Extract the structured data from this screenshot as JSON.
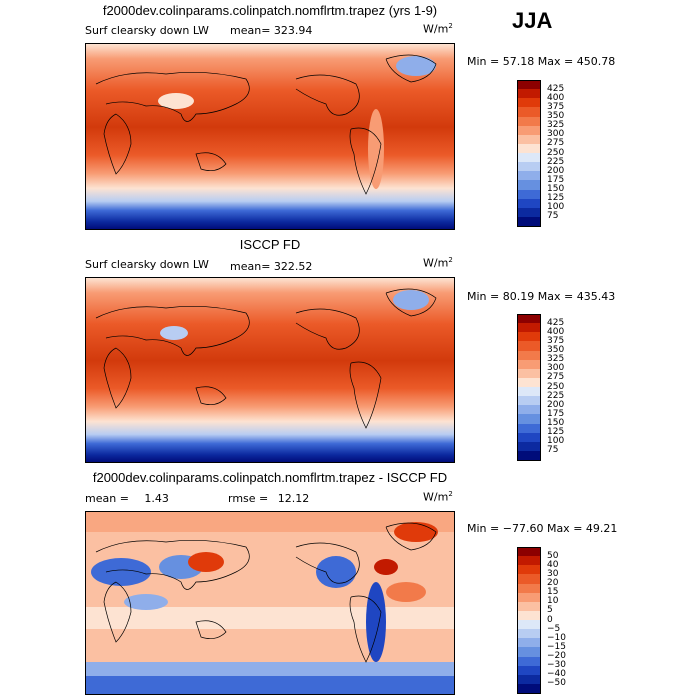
{
  "season": "JJA",
  "panels": [
    {
      "title": "f2000dev.colinparams.colinpatch.nomflrtm.trapez (yrs 1-9)",
      "field_label": "Surf clearsky down LW",
      "mean_label": "mean=",
      "mean_value": "323.94",
      "units_base": "W/m",
      "units_exp": "2",
      "min_label": "Min =",
      "min_value": "57.18",
      "max_label": "Max =",
      "max_value": "450.78"
    },
    {
      "title": "ISCCP FD",
      "field_label": "Surf clearsky down LW",
      "mean_label": "mean=",
      "mean_value": "322.52",
      "units_base": "W/m",
      "units_exp": "2",
      "min_label": "Min =",
      "min_value": "80.19",
      "max_label": "Max =",
      "max_value": "435.43"
    },
    {
      "title": "f2000dev.colinparams.colinpatch.nomflrtm.trapez - ISCCP FD",
      "mean_label": "mean =",
      "mean_value": "1.43",
      "rmse_label": "rmse =",
      "rmse_value": "12.12",
      "units_base": "W/m",
      "units_exp": "2",
      "min_label": "Min =",
      "min_value": "−77.60",
      "max_label": "Max =",
      "max_value": "49.21"
    }
  ],
  "chart_data": [
    {
      "type": "heatmap",
      "title": "f2000dev.colinparams.colinpatch.nomflrtm.trapez (yrs 1-9)",
      "variable": "Surf clearsky down LW",
      "units": "W/m2",
      "mean": 323.94,
      "min": 57.18,
      "max": 450.78,
      "colorbar_levels": [
        "425",
        "400",
        "375",
        "350",
        "325",
        "300",
        "275",
        "250",
        "225",
        "200",
        "175",
        "150",
        "125",
        "100",
        "75"
      ],
      "colorbar_colors": [
        "#8c0000",
        "#c21a00",
        "#e03a0a",
        "#eb5a28",
        "#f27a4a",
        "#f89c74",
        "#fbc0a2",
        "#fde3d2",
        "#dde8f8",
        "#b8cdf2",
        "#8faeea",
        "#6690e0",
        "#3e6ad6",
        "#1f46c2",
        "#0c2aa0",
        "#000c7a"
      ]
    },
    {
      "type": "heatmap",
      "title": "ISCCP FD",
      "variable": "Surf clearsky down LW",
      "units": "W/m2",
      "mean": 322.52,
      "min": 80.19,
      "max": 435.43,
      "colorbar_levels": [
        "425",
        "400",
        "375",
        "350",
        "325",
        "300",
        "275",
        "250",
        "225",
        "200",
        "175",
        "150",
        "125",
        "100",
        "75"
      ],
      "colorbar_colors": [
        "#8c0000",
        "#c21a00",
        "#e03a0a",
        "#eb5a28",
        "#f27a4a",
        "#f89c74",
        "#fbc0a2",
        "#fde3d2",
        "#dde8f8",
        "#b8cdf2",
        "#8faeea",
        "#6690e0",
        "#3e6ad6",
        "#1f46c2",
        "#0c2aa0",
        "#000c7a"
      ]
    },
    {
      "type": "heatmap",
      "title": "f2000dev.colinparams.colinpatch.nomflrtm.trapez - ISCCP FD",
      "units": "W/m2",
      "mean": 1.43,
      "rmse": 12.12,
      "min": -77.6,
      "max": 49.21,
      "colorbar_levels": [
        "50",
        "40",
        "30",
        "20",
        "15",
        "10",
        "5",
        "0",
        "−5",
        "−10",
        "−15",
        "−20",
        "−30",
        "−40",
        "−50"
      ],
      "colorbar_colors": [
        "#8c0000",
        "#c21a00",
        "#e03a0a",
        "#eb5a28",
        "#f27a4a",
        "#f89c74",
        "#fbc0a2",
        "#fde3d2",
        "#dde8f8",
        "#b8cdf2",
        "#8faeea",
        "#6690e0",
        "#3e6ad6",
        "#1f46c2",
        "#0c2aa0",
        "#000c7a"
      ]
    }
  ]
}
